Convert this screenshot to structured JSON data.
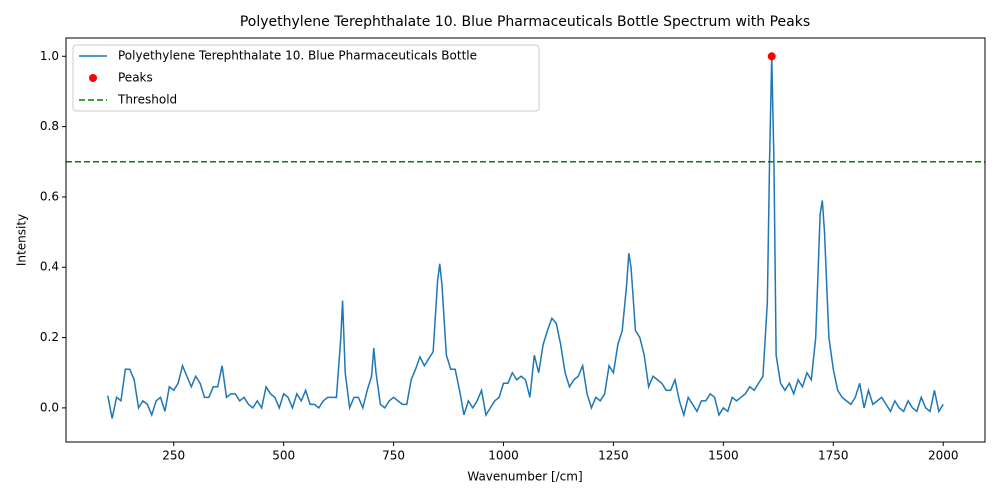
{
  "chart_data": {
    "type": "line",
    "title": "Polyethylene Terephthalate 10. Blue Pharmaceuticals Bottle Spectrum with Peaks",
    "x_label": "Wavenumber [/cm]",
    "y_label": "Intensity",
    "x": [
      100,
      110,
      120,
      130,
      140,
      150,
      160,
      170,
      180,
      190,
      200,
      210,
      220,
      230,
      240,
      250,
      260,
      270,
      280,
      290,
      300,
      310,
      320,
      330,
      340,
      350,
      360,
      370,
      380,
      390,
      400,
      410,
      420,
      430,
      440,
      450,
      460,
      470,
      480,
      490,
      500,
      510,
      520,
      530,
      540,
      550,
      560,
      570,
      580,
      590,
      600,
      610,
      620,
      630,
      634,
      640,
      650,
      660,
      670,
      680,
      690,
      700,
      705,
      710,
      720,
      730,
      740,
      750,
      760,
      770,
      780,
      790,
      800,
      810,
      820,
      830,
      840,
      850,
      855,
      860,
      870,
      880,
      890,
      900,
      910,
      920,
      930,
      940,
      950,
      960,
      970,
      980,
      990,
      1000,
      1010,
      1020,
      1030,
      1040,
      1050,
      1060,
      1070,
      1080,
      1090,
      1100,
      1110,
      1120,
      1130,
      1140,
      1150,
      1160,
      1170,
      1180,
      1190,
      1200,
      1210,
      1220,
      1230,
      1240,
      1250,
      1260,
      1270,
      1280,
      1285,
      1290,
      1300,
      1310,
      1320,
      1330,
      1340,
      1350,
      1360,
      1370,
      1380,
      1390,
      1400,
      1410,
      1420,
      1430,
      1440,
      1450,
      1460,
      1470,
      1480,
      1490,
      1500,
      1510,
      1520,
      1530,
      1540,
      1550,
      1560,
      1570,
      1580,
      1590,
      1600,
      1605,
      1610,
      1615,
      1620,
      1630,
      1640,
      1650,
      1660,
      1670,
      1680,
      1690,
      1700,
      1710,
      1720,
      1725,
      1730,
      1740,
      1750,
      1760,
      1770,
      1780,
      1790,
      1800,
      1810,
      1820,
      1830,
      1840,
      1850,
      1860,
      1870,
      1880,
      1890,
      1900,
      1910,
      1920,
      1930,
      1940,
      1950,
      1960,
      1970,
      1980,
      1990,
      2000
    ],
    "series": [
      {
        "name": "Polyethylene Terephthalate 10. Blue Pharmaceuticals Bottle",
        "color": "#1f77b4",
        "values": [
          0.035,
          -0.03,
          0.03,
          0.02,
          0.11,
          0.11,
          0.08,
          0.0,
          0.02,
          0.01,
          -0.02,
          0.02,
          0.03,
          -0.01,
          0.06,
          0.05,
          0.07,
          0.12,
          0.09,
          0.06,
          0.09,
          0.07,
          0.03,
          0.03,
          0.06,
          0.06,
          0.12,
          0.03,
          0.04,
          0.04,
          0.02,
          0.03,
          0.01,
          0.0,
          0.02,
          0.0,
          0.06,
          0.04,
          0.03,
          0.0,
          0.04,
          0.03,
          0.0,
          0.04,
          0.02,
          0.05,
          0.01,
          0.01,
          0.0,
          0.02,
          0.03,
          0.03,
          0.03,
          0.2,
          0.305,
          0.1,
          0.0,
          0.03,
          0.03,
          0.0,
          0.05,
          0.09,
          0.17,
          0.1,
          0.01,
          0.0,
          0.02,
          0.03,
          0.02,
          0.01,
          0.01,
          0.08,
          0.11,
          0.145,
          0.12,
          0.14,
          0.16,
          0.36,
          0.41,
          0.35,
          0.15,
          0.11,
          0.11,
          0.05,
          -0.02,
          0.02,
          0.0,
          0.02,
          0.05,
          -0.02,
          0.0,
          0.02,
          0.03,
          0.07,
          0.07,
          0.1,
          0.08,
          0.09,
          0.08,
          0.03,
          0.15,
          0.1,
          0.18,
          0.22,
          0.255,
          0.24,
          0.18,
          0.1,
          0.06,
          0.08,
          0.09,
          0.12,
          0.04,
          0.0,
          0.03,
          0.02,
          0.04,
          0.12,
          0.1,
          0.18,
          0.22,
          0.35,
          0.44,
          0.4,
          0.22,
          0.2,
          0.15,
          0.06,
          0.09,
          0.08,
          0.07,
          0.05,
          0.05,
          0.08,
          0.02,
          -0.02,
          0.03,
          0.01,
          -0.01,
          0.02,
          0.02,
          0.04,
          0.03,
          -0.02,
          0.0,
          -0.01,
          0.03,
          0.02,
          0.03,
          0.04,
          0.06,
          0.05,
          0.07,
          0.09,
          0.3,
          0.7,
          1.0,
          0.7,
          0.15,
          0.07,
          0.05,
          0.07,
          0.04,
          0.08,
          0.06,
          0.1,
          0.08,
          0.2,
          0.55,
          0.59,
          0.5,
          0.2,
          0.11,
          0.05,
          0.03,
          0.02,
          0.01,
          0.03,
          0.07,
          0.0,
          0.05,
          0.01,
          0.02,
          0.03,
          0.01,
          -0.01,
          0.02,
          0.0,
          -0.01,
          0.02,
          0.0,
          -0.01,
          0.03,
          0.0,
          -0.01,
          0.05,
          -0.01,
          0.01
        ]
      }
    ],
    "peaks": {
      "name": "Peaks",
      "color": "#ff0000",
      "x": [
        1610
      ],
      "values": [
        1.0
      ]
    },
    "threshold": {
      "name": "Threshold",
      "color": "#008000",
      "value": 0.7
    },
    "xlim": [
      5,
      2095
    ],
    "ylim": [
      -0.097,
      1.052
    ],
    "xticks": [
      250,
      500,
      750,
      1000,
      1250,
      1500,
      1750,
      2000
    ],
    "yticks": [
      {
        "value": 0,
        "label": "0.0"
      },
      0.2,
      0.4,
      0.6,
      0.8,
      {
        "value": 1,
        "label": "1.0"
      }
    ],
    "legend": "upper left"
  }
}
